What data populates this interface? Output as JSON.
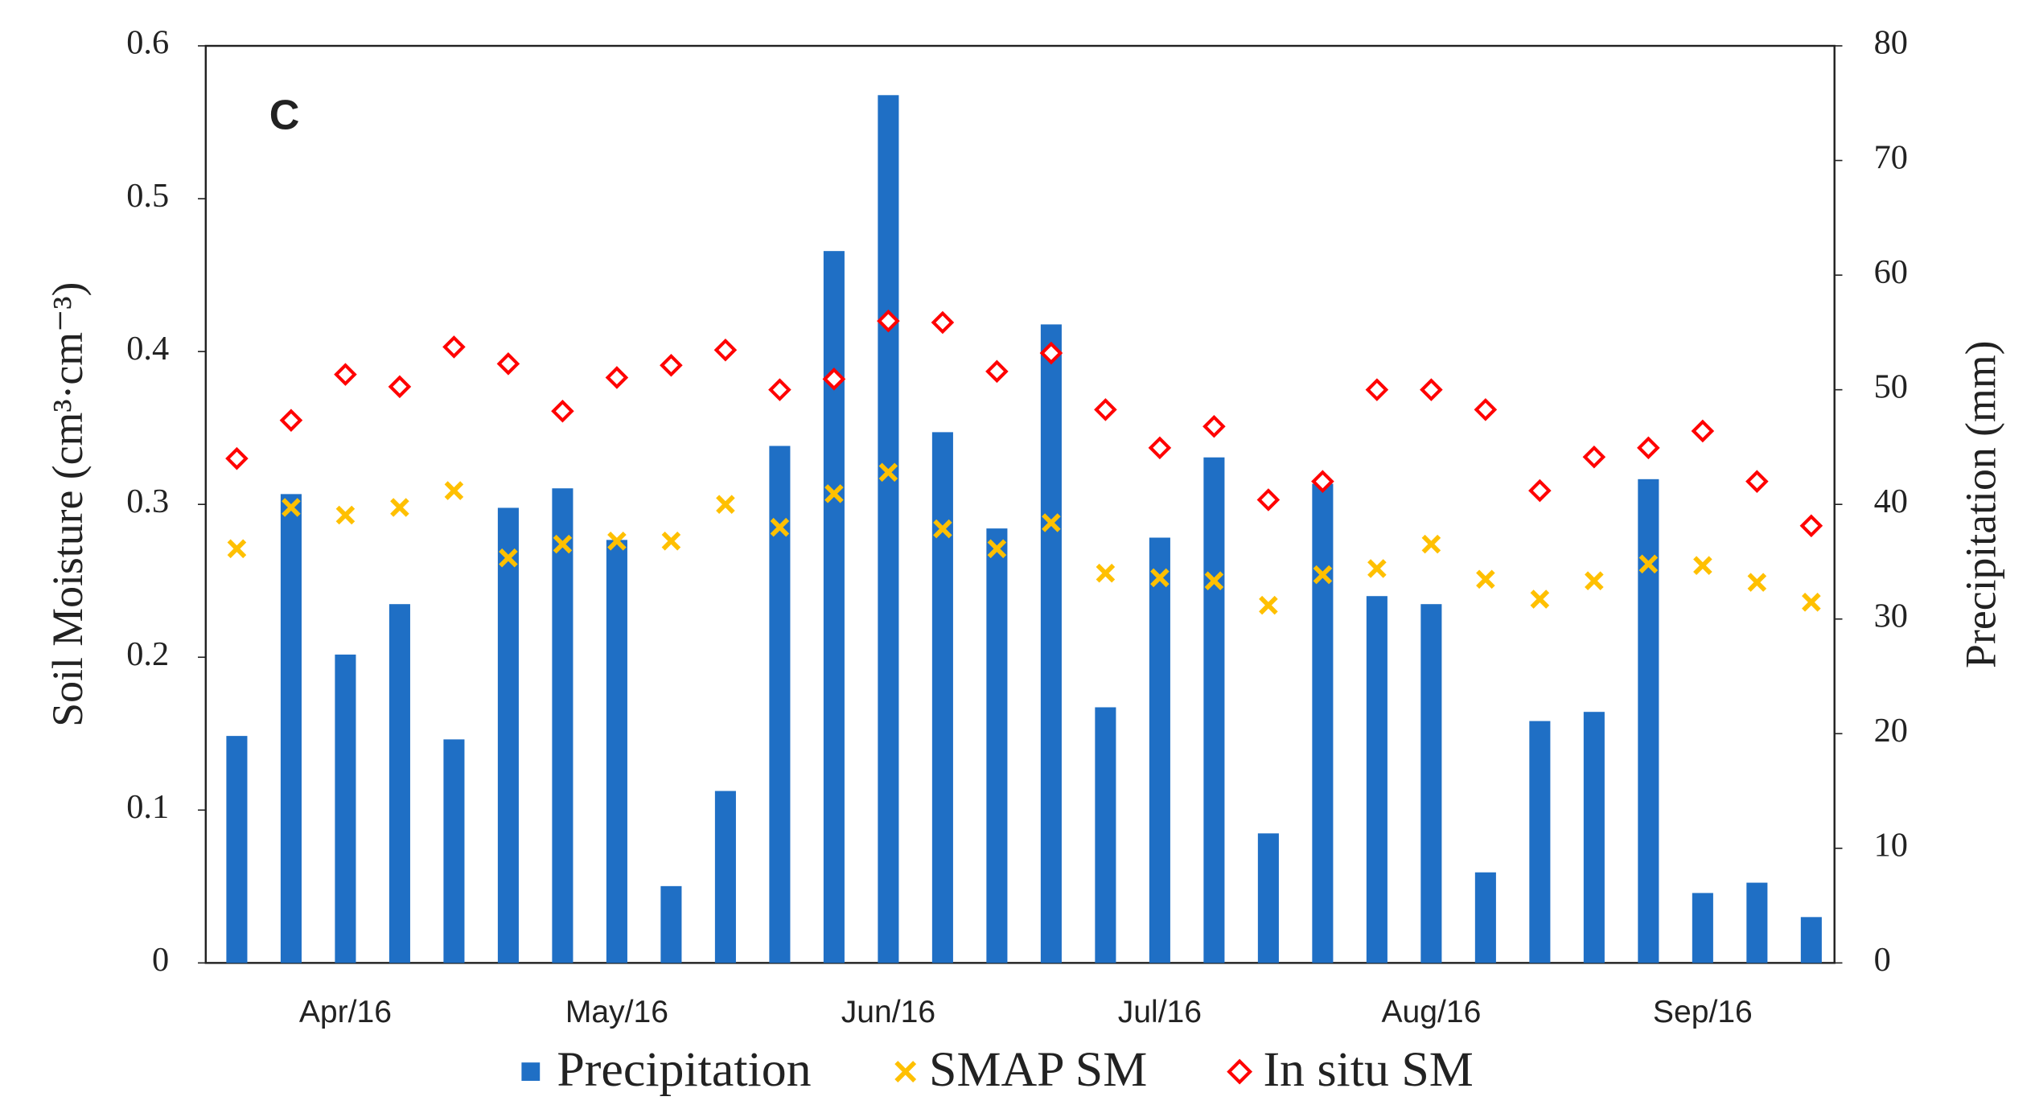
{
  "chart_data": {
    "type": "bar",
    "annotation": "C",
    "y_label": "Soil Moisture (cm³·cm⁻³)",
    "y2_label": "Precipitation (mm)",
    "categories": [
      null,
      null,
      "Apr/16",
      null,
      null,
      null,
      null,
      "May/16",
      null,
      null,
      null,
      null,
      "Jun/16",
      null,
      null,
      null,
      null,
      "Jul/16",
      null,
      null,
      null,
      null,
      "Aug/16",
      null,
      null,
      null,
      null,
      "Sep/16",
      null,
      null
    ],
    "series": [
      {
        "name": "Precipitation",
        "color": "#1f6fc5",
        "marker": "bar",
        "axis": "y2",
        "values": [
          19.8,
          40.9,
          26.9,
          31.3,
          19.5,
          39.7,
          41.4,
          36.9,
          6.7,
          15.0,
          45.1,
          62.1,
          75.7,
          46.3,
          37.9,
          55.7,
          22.3,
          37.1,
          44.1,
          11.3,
          41.8,
          32.0,
          31.3,
          7.9,
          21.1,
          21.9,
          42.2,
          6.1,
          7.0,
          4.0
        ]
      },
      {
        "name": "SMAP SM",
        "color": "#ffc000",
        "marker": "x",
        "values": [
          0.271,
          0.298,
          0.293,
          0.298,
          0.309,
          0.265,
          0.274,
          0.276,
          0.276,
          0.3,
          0.285,
          0.307,
          0.321,
          0.284,
          0.271,
          0.288,
          0.255,
          0.252,
          0.25,
          0.234,
          0.254,
          0.258,
          0.274,
          0.251,
          0.238,
          0.25,
          0.261,
          0.26,
          0.249,
          0.236
        ]
      },
      {
        "name": "In situ SM",
        "color": "#ff0000",
        "marker": "diamond",
        "values": [
          0.33,
          0.355,
          0.385,
          0.377,
          0.403,
          0.392,
          0.361,
          0.383,
          0.391,
          0.401,
          0.375,
          0.382,
          0.42,
          0.419,
          0.387,
          0.399,
          0.362,
          0.337,
          0.351,
          0.303,
          0.315,
          0.375,
          0.375,
          0.362,
          0.309,
          0.331,
          0.337,
          0.348,
          0.315,
          0.286
        ]
      }
    ],
    "ylim": [
      0,
      0.6
    ],
    "yticks": [
      0,
      0.1,
      0.2,
      0.3,
      0.4,
      0.5,
      0.6
    ],
    "y2lim": [
      0,
      80
    ],
    "y2ticks": [
      0,
      10,
      20,
      30,
      40,
      50,
      60,
      70,
      80
    ],
    "legend": "bottom"
  }
}
